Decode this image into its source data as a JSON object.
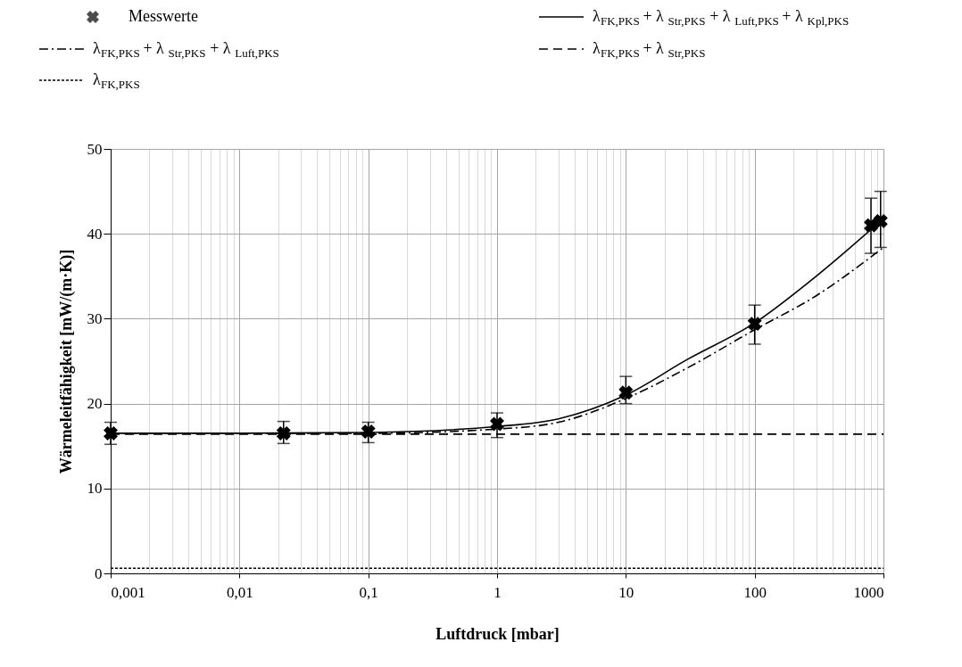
{
  "chart_data": {
    "type": "line",
    "xlabel": "Luftdruck [mbar]",
    "ylabel": "Wärmeleitfähigkeit  [mW/(m·K)]",
    "log": "x",
    "xlim": [
      0.001,
      1000
    ],
    "ylim": [
      0,
      50
    ],
    "xticks": [
      {
        "value": 0.001,
        "label": "0,001"
      },
      {
        "value": 0.01,
        "label": "0,01"
      },
      {
        "value": 0.1,
        "label": "0,1"
      },
      1,
      10,
      100,
      1000
    ],
    "yticks": [
      0,
      10,
      20,
      30,
      40,
      50
    ],
    "grid": true,
    "legend": "top",
    "series": [
      {
        "name": "Messwerte",
        "type": "scatter",
        "marker": "cross",
        "color": "#000000",
        "x": [
          0.001,
          0.022,
          0.1,
          1,
          10,
          100,
          800,
          950
        ],
        "values": [
          16.5,
          16.5,
          16.7,
          17.6,
          21.3,
          29.4,
          41.0,
          41.5
        ],
        "errors": [
          [
            15.2,
            17.8
          ],
          [
            15.3,
            17.9
          ],
          [
            15.4,
            17.8
          ],
          [
            16.0,
            18.9
          ],
          [
            20.0,
            23.2
          ],
          [
            27.0,
            31.6
          ],
          [
            37.7,
            44.2
          ],
          [
            38.4,
            45.0
          ]
        ]
      },
      {
        "name": "λ$_{FK,PKS}$ + λ$_{Str,PKS}$ + λ$_{Luft,PKS}$ + λ$_{Kpl,PKS}$",
        "line_style": "solid",
        "color": "#000000",
        "x": [
          0.001,
          0.01,
          0.1,
          1,
          3,
          10,
          30,
          100,
          300,
          1000
        ],
        "values": [
          16.5,
          16.5,
          16.6,
          17.3,
          18.2,
          21.0,
          25.2,
          29.5,
          35.0,
          41.8
        ]
      },
      {
        "name": "λ$_{FK,PKS}$ + λ$_{Str,PKS}$ + λ$_{Luft,PKS}$",
        "line_style": "dashdot",
        "color": "#000000",
        "x": [
          0.001,
          0.01,
          0.1,
          1,
          3,
          10,
          30,
          100,
          300,
          1000
        ],
        "values": [
          16.5,
          16.5,
          16.5,
          17.0,
          17.8,
          20.6,
          24.2,
          28.7,
          32.7,
          38.4
        ]
      },
      {
        "name": "λ$_{FK,PKS}$ + λ$_{Str,PKS}$",
        "line_style": "dashed",
        "color": "#000000",
        "x": [
          0.001,
          1000
        ],
        "values": [
          16.4,
          16.4
        ]
      },
      {
        "name": "λ$_{FK,PKS}$",
        "line_style": "dotted",
        "color": "#000000",
        "x": [
          0.001,
          1000
        ],
        "values": [
          0.6,
          0.6
        ]
      }
    ]
  }
}
